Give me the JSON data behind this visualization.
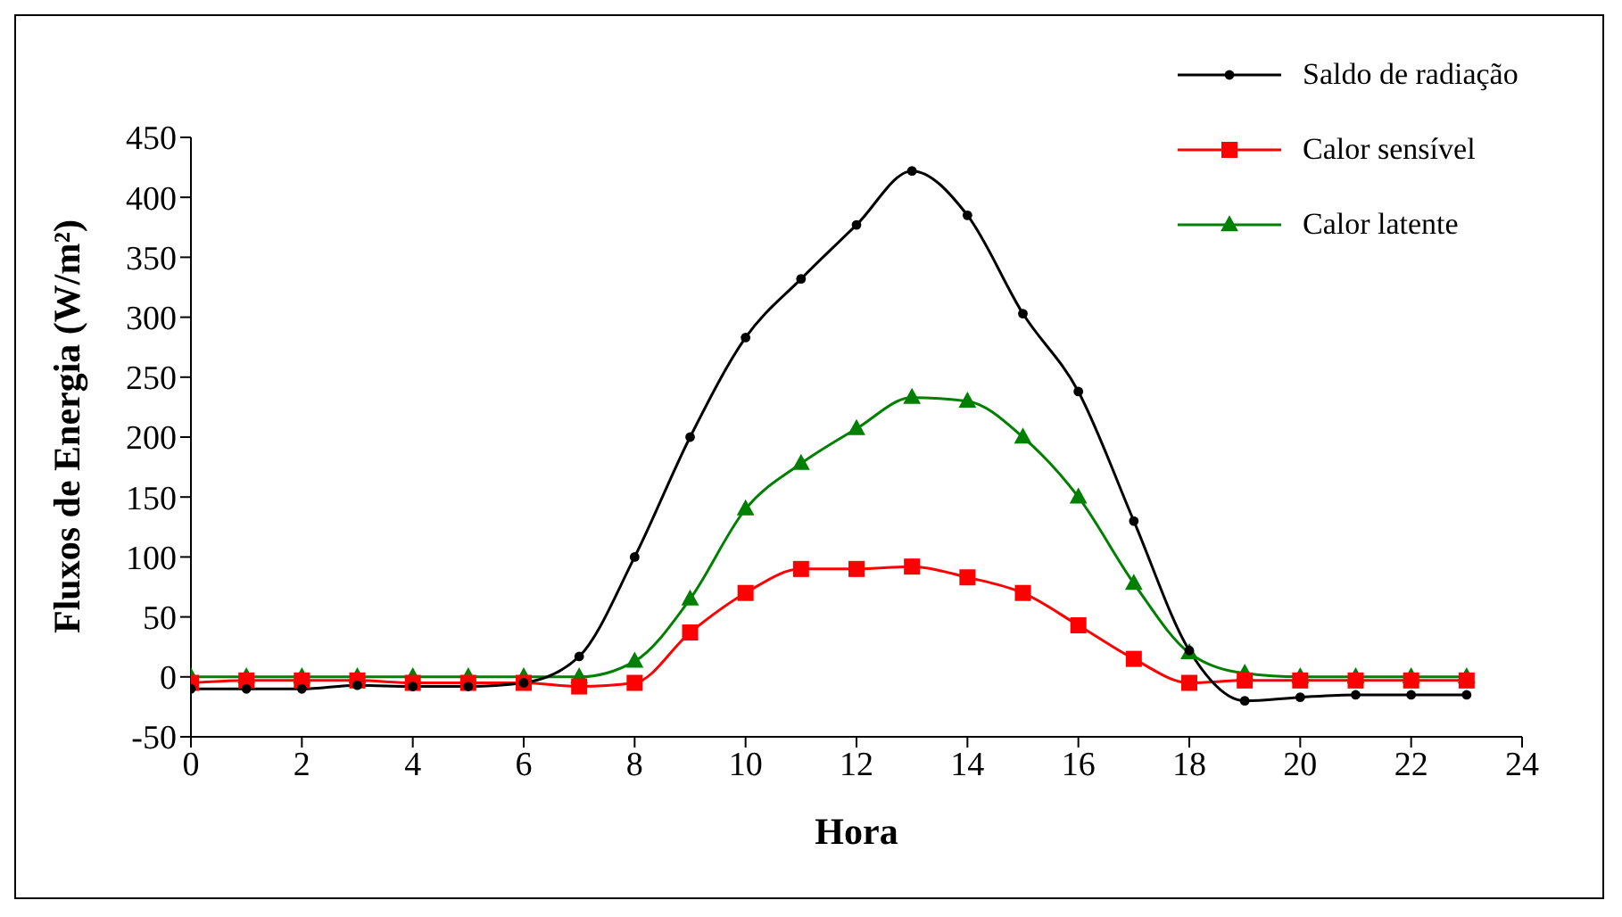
{
  "chart_data": {
    "type": "line",
    "xlabel": "Hora",
    "ylabel": "Fluxos de Energia (W/m²)",
    "x": [
      0,
      1,
      2,
      3,
      4,
      5,
      6,
      7,
      8,
      9,
      10,
      11,
      12,
      13,
      14,
      15,
      16,
      17,
      18,
      19,
      20,
      21,
      22,
      23
    ],
    "series": [
      {
        "name": "Saldo de radiação",
        "color": "#000000",
        "marker": "circle",
        "values": [
          -10,
          -10,
          -10,
          -7,
          -8,
          -8,
          -5,
          17,
          100,
          200,
          283,
          332,
          377,
          422,
          385,
          303,
          238,
          130,
          22,
          -20,
          -17,
          -15,
          -15,
          -15
        ]
      },
      {
        "name": "Calor sensível",
        "color": "#ff0000",
        "marker": "square",
        "values": [
          -5,
          -3,
          -3,
          -3,
          -5,
          -5,
          -5,
          -8,
          -5,
          37,
          70,
          90,
          90,
          92,
          83,
          70,
          43,
          15,
          -5,
          -3,
          -3,
          -3,
          -3,
          -3
        ]
      },
      {
        "name": "Calor latente",
        "color": "#008000",
        "marker": "triangle",
        "values": [
          0,
          0,
          0,
          0,
          0,
          0,
          0,
          0,
          13,
          65,
          140,
          178,
          207,
          233,
          230,
          200,
          150,
          78,
          20,
          3,
          0,
          0,
          0,
          0
        ]
      }
    ],
    "xlim": [
      0,
      24
    ],
    "xticks": [
      0,
      2,
      4,
      6,
      8,
      10,
      12,
      14,
      16,
      18,
      20,
      22,
      24
    ],
    "ylim": [
      -50,
      450
    ],
    "yticks": [
      -50,
      0,
      50,
      100,
      150,
      200,
      250,
      300,
      350,
      400,
      450
    ],
    "grid": false,
    "legend": "top right"
  }
}
